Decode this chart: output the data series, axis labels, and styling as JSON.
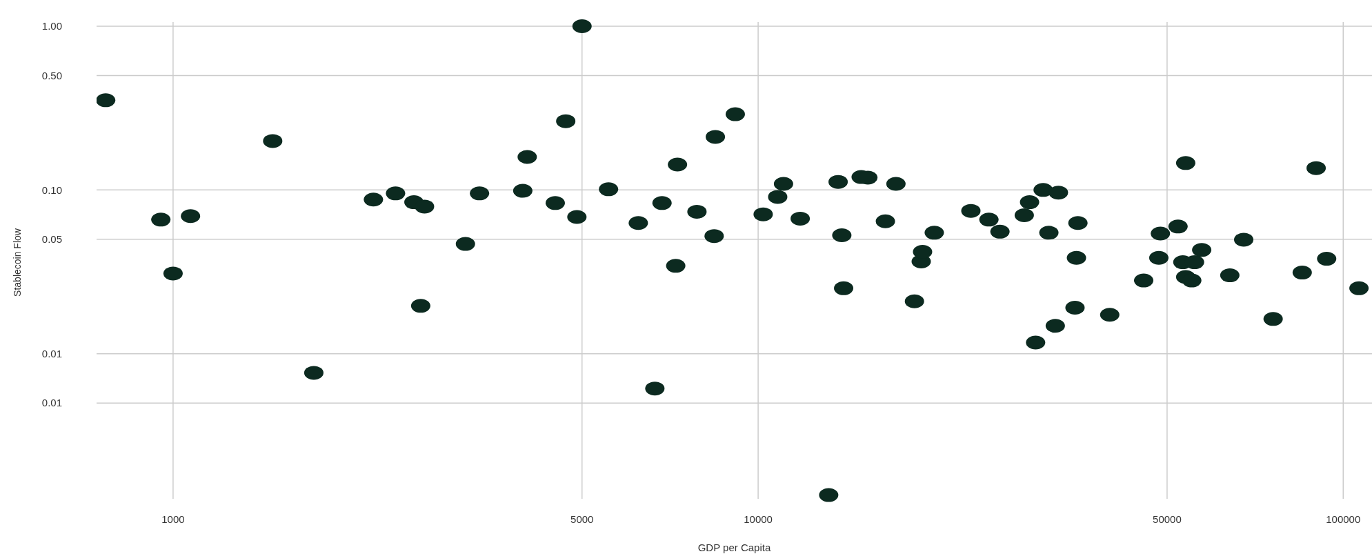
{
  "chart_data": {
    "type": "scatter",
    "xlabel": "GDP per Capita",
    "ylabel": "Stablecoin Flow",
    "log": "xy",
    "grid": true,
    "marker": "circle",
    "xlim": [
      740,
      112000
    ],
    "xticks": [
      1000,
      5000,
      10000,
      50000,
      100000
    ],
    "ylim": [
      0.0013,
      1
    ],
    "yticks": [
      {
        "value": 1,
        "label": "1.00"
      },
      {
        "value": 0.5,
        "label": "0.50"
      },
      {
        "value": 0.1,
        "label": "0.10"
      },
      {
        "value": 0.05,
        "label": "0.05"
      },
      {
        "value": 0.01,
        "label": "0.01"
      },
      {
        "value": 0.005,
        "label": "0.01"
      }
    ],
    "series": [
      {
        "color": "#0c2a20",
        "x": [
          767,
          953,
          1071,
          1000,
          1480,
          1740,
          2200,
          2400,
          2580,
          2690,
          2650,
          3160,
          3340,
          3960,
          4030,
          4500,
          4690,
          4900,
          5000,
          5550,
          6240,
          6850,
          7280,
          7230,
          6660,
          7860,
          8410,
          8450,
          9140,
          10200,
          10800,
          11050,
          11800,
          13200,
          13700,
          13900,
          14000,
          15000,
          15400,
          16500,
          17200,
          18500,
          19000,
          19100,
          20000,
          23100,
          24800,
          25900,
          28500,
          29100,
          30700,
          32600,
          31400,
          29800,
          32200,
          34800,
          35000,
          35200,
          39900,
          45600,
          48400,
          48700,
          52200,
          53800,
          53200,
          53800,
          55100,
          55700,
          57300,
          64000,
          67600,
          75900,
          85100,
          89900,
          93700,
          106400
        ],
        "values": [
          0.353,
          0.0659,
          0.0692,
          0.0309,
          0.199,
          0.00764,
          0.0874,
          0.0953,
          0.0842,
          0.0792,
          0.0196,
          0.0468,
          0.0953,
          0.0988,
          0.159,
          0.0832,
          0.263,
          0.0684,
          1.0,
          0.101,
          0.0628,
          0.0832,
          0.143,
          0.0344,
          0.00613,
          0.0736,
          0.0523,
          0.211,
          0.29,
          0.071,
          0.0907,
          0.109,
          0.0668,
          0.00137,
          0.112,
          0.0529,
          0.0251,
          0.12,
          0.119,
          0.0644,
          0.109,
          0.0209,
          0.0366,
          0.0419,
          0.0548,
          0.0745,
          0.0659,
          0.0556,
          0.0701,
          0.0842,
          0.1,
          0.0964,
          0.0548,
          0.0117,
          0.0148,
          0.0191,
          0.0385,
          0.0628,
          0.0173,
          0.028,
          0.0385,
          0.0542,
          0.0598,
          0.146,
          0.0362,
          0.0294,
          0.028,
          0.0362,
          0.043,
          0.0301,
          0.0497,
          0.0163,
          0.0313,
          0.136,
          0.038,
          0.0251
        ]
      }
    ]
  }
}
